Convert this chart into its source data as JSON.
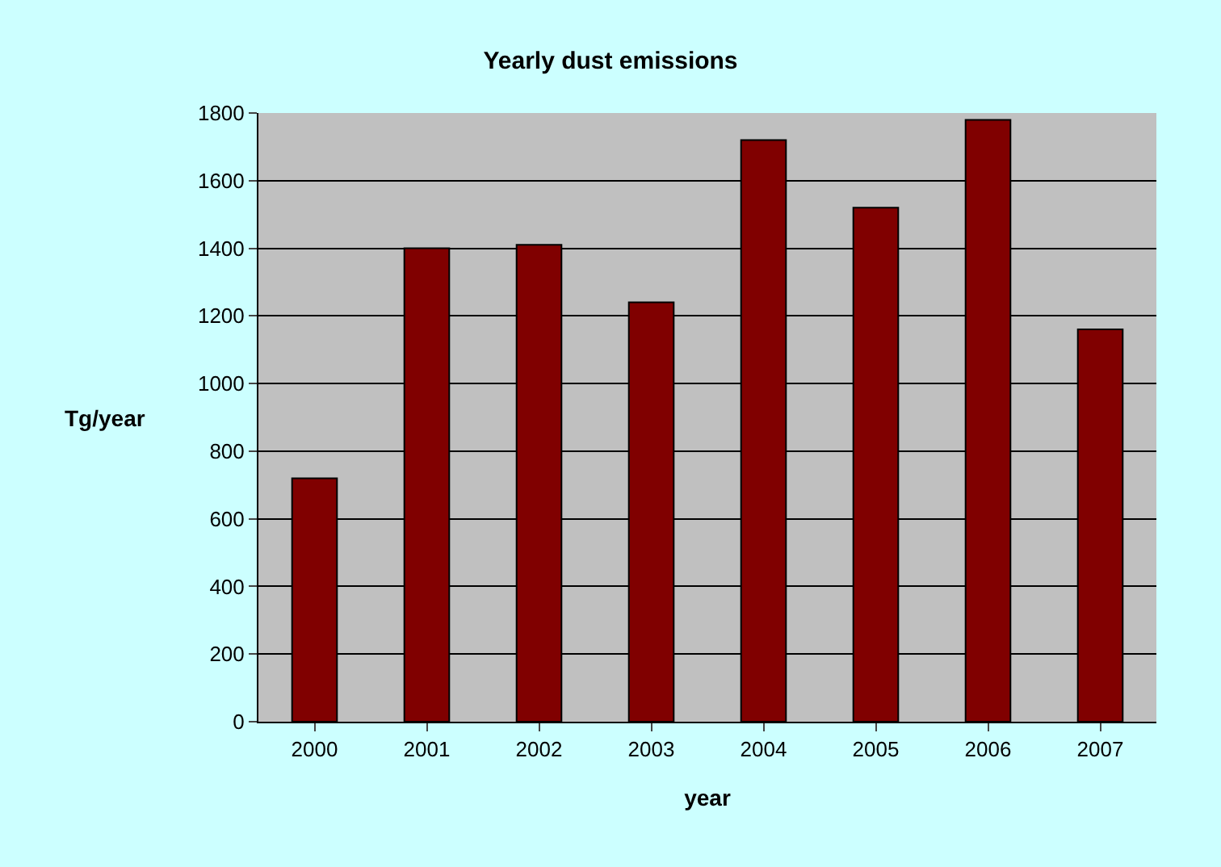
{
  "chart_data": {
    "type": "bar",
    "title": "Yearly dust emissions",
    "xlabel": "year",
    "ylabel": "Tg/year",
    "categories": [
      "2000",
      "2001",
      "2002",
      "2003",
      "2004",
      "2005",
      "2006",
      "2007"
    ],
    "values": [
      720,
      1400,
      1410,
      1240,
      1720,
      1520,
      1780,
      1160
    ],
    "color": "#800000",
    "ylim": [
      0,
      1800
    ],
    "yticks": [
      0,
      200,
      400,
      600,
      800,
      1000,
      1200,
      1400,
      1600,
      1800
    ],
    "grid": "y"
  }
}
